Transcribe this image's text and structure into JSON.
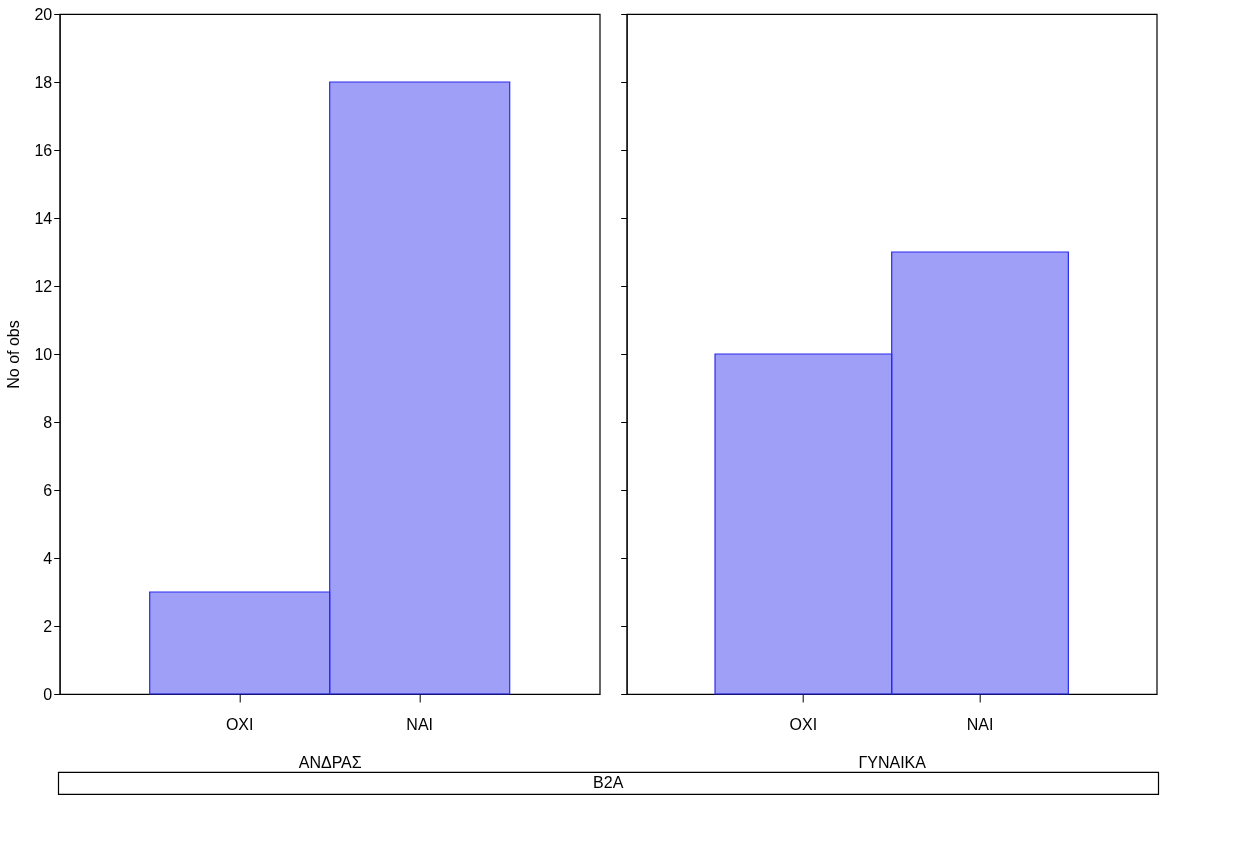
{
  "chart_data": [
    {
      "type": "bar",
      "categories": [
        "ΟΧΙ",
        "ΝΑΙ"
      ],
      "values": [
        3,
        18
      ],
      "color": "#2a2af0",
      "xlabel": "ΑΝΔΡΑΣ",
      "ylabel": "No of obs",
      "ylim": [
        0,
        20
      ],
      "yticks": [
        0,
        2,
        4,
        6,
        8,
        10,
        12,
        14,
        16,
        18,
        20
      ],
      "grid": false,
      "annotations": [
        "B2A"
      ]
    },
    {
      "type": "bar",
      "categories": [
        "ΟΧΙ",
        "ΝΑΙ"
      ],
      "values": [
        10,
        13
      ],
      "color": "#2a2af0",
      "xlabel": "ΓΥΝΑΙΚΑ",
      "ylim": [
        0,
        20
      ],
      "yticks": [
        0,
        2,
        4,
        6,
        8,
        10,
        12,
        14,
        16,
        18,
        20
      ],
      "grid": false,
      "tick_labels": "x"
    }
  ]
}
